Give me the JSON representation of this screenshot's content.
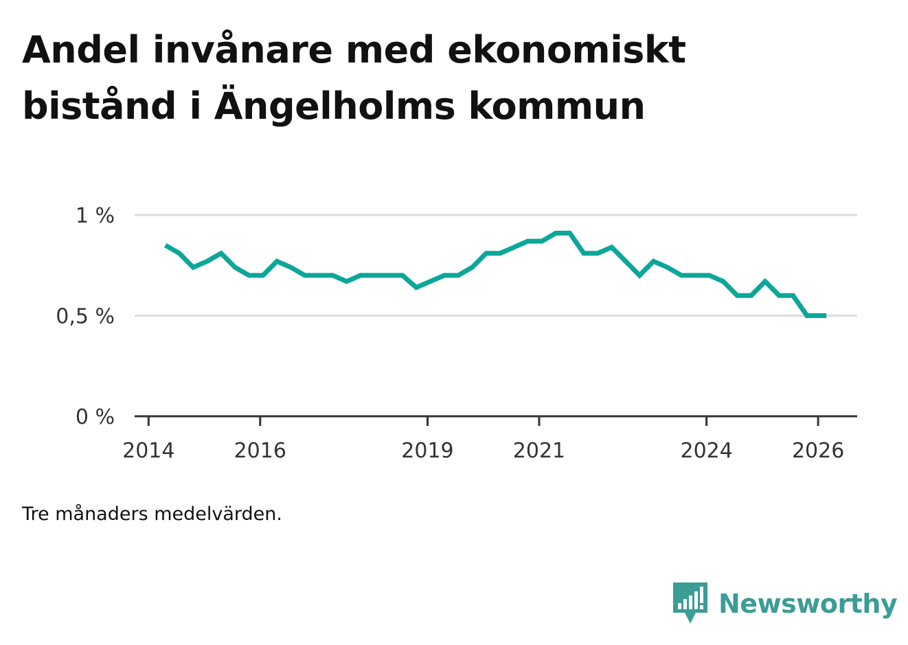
{
  "title": "Andel invånare med ekonomiskt bistånd i Ängelholms kommun",
  "note": "Tre månaders medelvärden.",
  "brand": {
    "name": "Newsworthy",
    "icon": "newsworthy-logo-icon",
    "color": "#3c9c96"
  },
  "chart_data": {
    "type": "line",
    "title": "Andel invånare med ekonomiskt bistånd i Ängelholms kommun",
    "xlabel": "",
    "ylabel": "",
    "ylim": [
      0,
      1
    ],
    "grid": true,
    "line_color": "#0ca69a",
    "y_ticks": [
      {
        "value": 0,
        "label": "0 %"
      },
      {
        "value": 0.5,
        "label": "0,5 %"
      },
      {
        "value": 1,
        "label": "1 %"
      }
    ],
    "x_ticks": [
      {
        "value": 2014,
        "label": "2014"
      },
      {
        "value": 2016,
        "label": "2016"
      },
      {
        "value": 2019,
        "label": "2019"
      },
      {
        "value": 2021,
        "label": "2021"
      },
      {
        "value": 2024,
        "label": "2024"
      },
      {
        "value": 2026,
        "label": "2026"
      }
    ],
    "xlim": [
      2013.75,
      2026.7
    ],
    "series": [
      {
        "name": "Andel invånare med ekonomiskt bistånd",
        "x": [
          2014.3,
          2014.55,
          2014.8,
          2015.05,
          2015.3,
          2015.55,
          2015.8,
          2016.05,
          2016.3,
          2016.55,
          2016.8,
          2017.05,
          2017.3,
          2017.55,
          2017.8,
          2018.05,
          2018.3,
          2018.55,
          2018.8,
          2019.05,
          2019.3,
          2019.55,
          2019.8,
          2020.05,
          2020.3,
          2020.55,
          2020.8,
          2021.05,
          2021.3,
          2021.55,
          2021.8,
          2022.05,
          2022.3,
          2022.55,
          2022.8,
          2023.05,
          2023.3,
          2023.55,
          2023.8,
          2024.05,
          2024.3,
          2024.55,
          2024.8,
          2025.05,
          2025.3,
          2025.55,
          2025.8,
          2026.05,
          2026.15
        ],
        "values": [
          0.85,
          0.81,
          0.74,
          0.77,
          0.81,
          0.74,
          0.7,
          0.7,
          0.77,
          0.74,
          0.7,
          0.7,
          0.7,
          0.67,
          0.7,
          0.7,
          0.7,
          0.7,
          0.64,
          0.67,
          0.7,
          0.7,
          0.74,
          0.81,
          0.81,
          0.84,
          0.87,
          0.87,
          0.91,
          0.91,
          0.81,
          0.81,
          0.84,
          0.77,
          0.7,
          0.77,
          0.74,
          0.7,
          0.7,
          0.7,
          0.67,
          0.6,
          0.6,
          0.67,
          0.6,
          0.6,
          0.5,
          0.5,
          0.5
        ]
      }
    ]
  }
}
